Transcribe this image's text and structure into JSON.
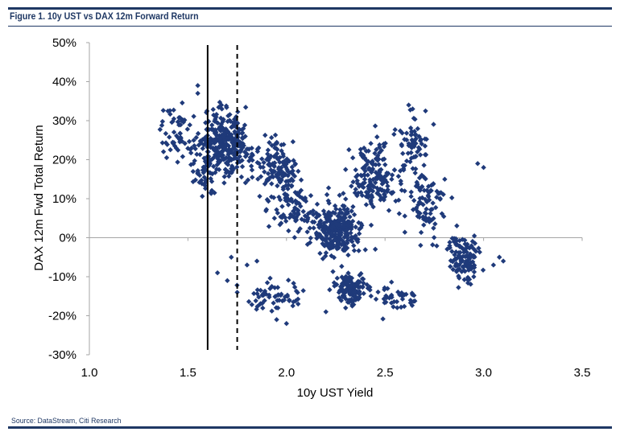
{
  "title": "Figure 1. 10y UST vs DAX 12m Forward Return",
  "source": "Source: DataStream, Citi Research",
  "colors": {
    "marker": "#1f3a7a",
    "frame": "#1f3864",
    "axis": "#a6a6a6"
  },
  "chart_data": {
    "type": "scatter",
    "marker": "diamond",
    "xlabel": "10y UST Yield",
    "ylabel": "DAX 12m Fwd Total Return",
    "xlim": [
      1.0,
      3.5
    ],
    "ylim": [
      -30,
      50
    ],
    "x_ticks": [
      "1.0",
      "1.5",
      "2.0",
      "2.5",
      "3.0",
      "3.5"
    ],
    "y_ticks": [
      "50%",
      "40%",
      "30%",
      "20%",
      "10%",
      "0%",
      "-10%",
      "-20%",
      "-30%"
    ],
    "x_tick_values": [
      1.0,
      1.5,
      2.0,
      2.5,
      3.0,
      3.5
    ],
    "y_tick_values": [
      50,
      40,
      30,
      20,
      10,
      0,
      -10,
      -20,
      -30
    ],
    "vertical_lines": [
      {
        "x": 1.6,
        "style": "solid"
      },
      {
        "x": 1.75,
        "style": "dashed"
      }
    ],
    "clusters": [
      {
        "name": "upper-left",
        "cx": 1.68,
        "cy": 24,
        "sx": 0.1,
        "sy": 5.5,
        "n": 320
      },
      {
        "name": "left-edge",
        "cx": 1.45,
        "cy": 27,
        "sx": 0.06,
        "sy": 5,
        "n": 60
      },
      {
        "name": "left-low",
        "cx": 1.58,
        "cy": 15,
        "sx": 0.05,
        "sy": 3,
        "n": 30
      },
      {
        "name": "mid-upper",
        "cx": 1.95,
        "cy": 18,
        "sx": 0.08,
        "sy": 5,
        "n": 130
      },
      {
        "name": "mid-center",
        "cx": 2.05,
        "cy": 8,
        "sx": 0.08,
        "sy": 5,
        "n": 80
      },
      {
        "name": "central-blob",
        "cx": 2.25,
        "cy": 2,
        "sx": 0.09,
        "sy": 5,
        "n": 260
      },
      {
        "name": "lower-center",
        "cx": 2.33,
        "cy": -13,
        "sx": 0.06,
        "sy": 3,
        "n": 120
      },
      {
        "name": "right-mid",
        "cx": 2.45,
        "cy": 15,
        "sx": 0.08,
        "sy": 6,
        "n": 170
      },
      {
        "name": "right-upper",
        "cx": 2.65,
        "cy": 25,
        "sx": 0.06,
        "sy": 5,
        "n": 60
      },
      {
        "name": "right-lower",
        "cx": 2.9,
        "cy": -5,
        "sx": 0.06,
        "sy": 4,
        "n": 110
      },
      {
        "name": "right-center",
        "cx": 2.72,
        "cy": 9,
        "sx": 0.08,
        "sy": 6,
        "n": 90
      },
      {
        "name": "bottom-left-arc",
        "cx": 1.95,
        "cy": -15,
        "sx": 0.1,
        "sy": 3,
        "n": 60
      },
      {
        "name": "bottom-right-arc",
        "cx": 2.55,
        "cy": -16,
        "sx": 0.08,
        "sy": 3,
        "n": 40
      }
    ],
    "outliers": [
      [
        3.1,
        -6
      ],
      [
        3.08,
        -5
      ],
      [
        3.05,
        -7
      ],
      [
        1.65,
        -9
      ],
      [
        1.7,
        -11
      ],
      [
        1.75,
        -14
      ],
      [
        1.72,
        -5
      ],
      [
        1.85,
        -6
      ],
      [
        1.8,
        -7
      ],
      [
        1.55,
        39
      ],
      [
        1.55,
        37
      ],
      [
        3.0,
        18
      ],
      [
        2.97,
        19
      ],
      [
        2.95,
        -10
      ],
      [
        1.95,
        -21
      ],
      [
        2.0,
        -22
      ],
      [
        2.2,
        -19
      ],
      [
        2.3,
        -18
      ],
      [
        2.62,
        34
      ],
      [
        2.64,
        33
      ]
    ]
  }
}
